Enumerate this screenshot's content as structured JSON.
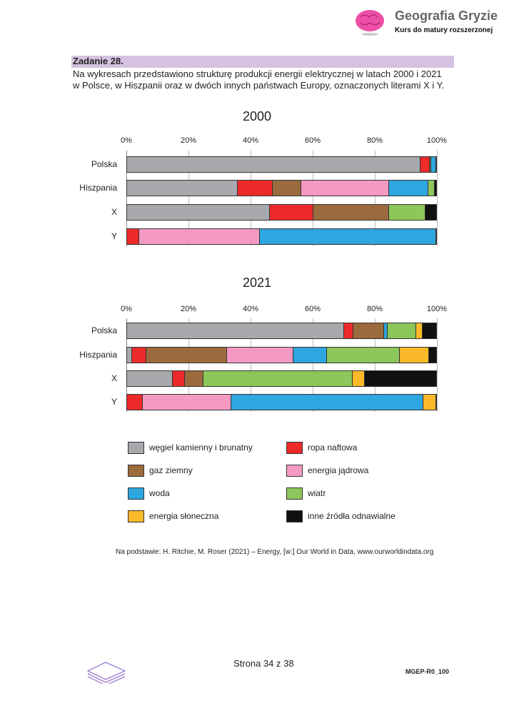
{
  "header": {
    "brand_title": "Geografia Gryzie",
    "brand_subtitle": "Kurs do matury rozszerzonej",
    "logo_icon": "brain-icon"
  },
  "task": {
    "title": "Zadanie 28.",
    "intro_line1": "Na wykresach przedstawiono strukturę produkcji energii elektrycznej w latach 2000 i 2021",
    "intro_line2": "w Polsce, w Hiszpanii oraz w dwóch innych państwach Europy, oznaczonych literami X i Y."
  },
  "chart_data": [
    {
      "type": "bar",
      "orientation": "horizontal",
      "stacked": true,
      "title": "2000",
      "categories": [
        "Polska",
        "Hiszpania",
        "X",
        "Y"
      ],
      "xlim": [
        0,
        100
      ],
      "xticks": [
        "0%",
        "20%",
        "40%",
        "60%",
        "80%",
        "100%"
      ],
      "grid": true,
      "series": [
        {
          "name": "węgiel kamienny i brunatny",
          "color": "#a7a9ac",
          "values": [
            94.8,
            35.8,
            46.3,
            0
          ]
        },
        {
          "name": "ropa naftowa",
          "color": "#ed2a2a",
          "values": [
            2.9,
            11.3,
            13.9,
            4.1
          ]
        },
        {
          "name": "gaz ziemny",
          "color": "#9b6a3d",
          "values": [
            0.5,
            9.2,
            24.5,
            0
          ]
        },
        {
          "name": "energia jądrowa",
          "color": "#f49ac2",
          "values": [
            0,
            28.2,
            0,
            38.9
          ]
        },
        {
          "name": "woda",
          "color": "#2ea6df",
          "values": [
            1.6,
            12.7,
            0,
            56.8
          ]
        },
        {
          "name": "wiatr",
          "color": "#8dc65a",
          "values": [
            0,
            2.0,
            11.6,
            0
          ]
        },
        {
          "name": "energia słoneczna",
          "color": "#f9b928",
          "values": [
            0,
            0,
            0,
            0
          ]
        },
        {
          "name": "inne źródła odnawialne",
          "color": "#111111",
          "values": [
            0.2,
            0.8,
            3.7,
            0.2
          ]
        }
      ]
    },
    {
      "type": "bar",
      "orientation": "horizontal",
      "stacked": true,
      "title": "2021",
      "categories": [
        "Polska",
        "Hiszpania",
        "X",
        "Y"
      ],
      "xlim": [
        0,
        100
      ],
      "xticks": [
        "0%",
        "20%",
        "40%",
        "60%",
        "80%",
        "100%"
      ],
      "grid": true,
      "series": [
        {
          "name": "węgiel kamienny i brunatny",
          "color": "#a7a9ac",
          "values": [
            70.2,
            1.9,
            15.0,
            0
          ]
        },
        {
          "name": "ropa naftowa",
          "color": "#ed2a2a",
          "values": [
            3.0,
            4.6,
            3.8,
            5.4
          ]
        },
        {
          "name": "gaz ziemny",
          "color": "#9b6a3d",
          "values": [
            9.7,
            26.0,
            6.1,
            0
          ]
        },
        {
          "name": "energia jądrowa",
          "color": "#f49ac2",
          "values": [
            0,
            21.2,
            0,
            28.5
          ]
        },
        {
          "name": "woda",
          "color": "#2ea6df",
          "values": [
            1.3,
            10.9,
            0,
            61.7
          ]
        },
        {
          "name": "wiatr",
          "color": "#8dc65a",
          "values": [
            9.1,
            23.4,
            47.9,
            0
          ]
        },
        {
          "name": "energia słoneczna",
          "color": "#f9b928",
          "values": [
            2.0,
            9.5,
            4.0,
            4.2
          ]
        },
        {
          "name": "inne źródła odnawialne",
          "color": "#111111",
          "values": [
            4.7,
            2.5,
            23.2,
            0.2
          ]
        }
      ]
    }
  ],
  "legend": [
    "węgiel kamienny i brunatny",
    "ropa naftowa",
    "gaz ziemny",
    "energia jądrowa",
    "woda",
    "wiatr",
    "energia słoneczna",
    "inne źródła odnawialne"
  ],
  "source": "Na podstawie: H. Ritchie, M. Roser (2021) – Energy, [w:] Our World in Data, www.ourworldindata.org",
  "footer": {
    "page": "Strona 34 z 38",
    "code": "MGEP-R0_100",
    "logo_icon": "cke-stack-icon"
  }
}
